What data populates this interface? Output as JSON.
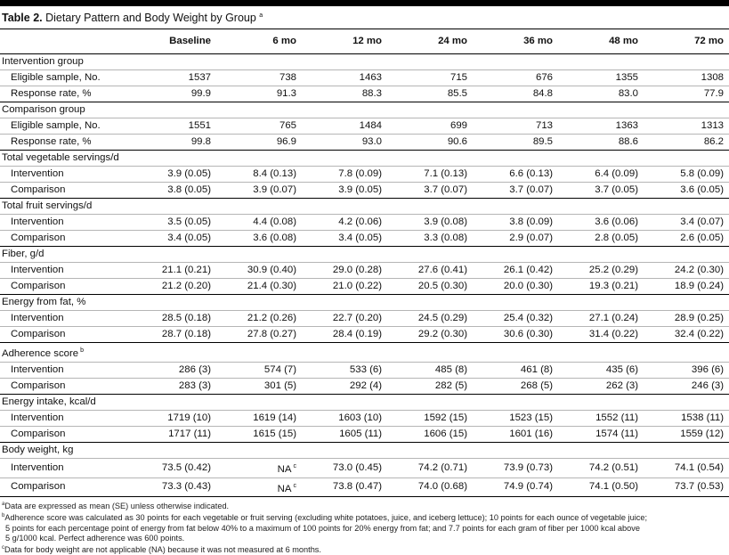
{
  "caption": {
    "label": "Table 2.",
    "title": "Dietary Pattern and Body Weight by Group",
    "mark": "a"
  },
  "header": [
    "",
    "Baseline",
    "6 mo",
    "12 mo",
    "24 mo",
    "36 mo",
    "48 mo",
    "72 mo"
  ],
  "groups": [
    {
      "label": "Intervention group",
      "rows": [
        {
          "label": "Eligible sample, No.",
          "values": [
            "1537",
            "738",
            "1463",
            "715",
            "676",
            "1355",
            "1308"
          ]
        },
        {
          "label": "Response rate, %",
          "values": [
            "99.9",
            "91.3",
            "88.3",
            "85.5",
            "84.8",
            "83.0",
            "77.9"
          ]
        }
      ]
    },
    {
      "label": "Comparison group",
      "rows": [
        {
          "label": "Eligible sample, No.",
          "values": [
            "1551",
            "765",
            "1484",
            "699",
            "713",
            "1363",
            "1313"
          ]
        },
        {
          "label": "Response rate, %",
          "values": [
            "99.8",
            "96.9",
            "93.0",
            "90.6",
            "89.5",
            "88.6",
            "86.2"
          ]
        }
      ]
    },
    {
      "label": "Total vegetable servings/d",
      "rows": [
        {
          "label": "Intervention",
          "values": [
            "3.9 (0.05)",
            "8.4 (0.13)",
            "7.8 (0.09)",
            "7.1 (0.13)",
            "6.6 (0.13)",
            "6.4 (0.09)",
            "5.8 (0.09)"
          ]
        },
        {
          "label": "Comparison",
          "values": [
            "3.8 (0.05)",
            "3.9 (0.07)",
            "3.9 (0.05)",
            "3.7 (0.07)",
            "3.7 (0.07)",
            "3.7 (0.05)",
            "3.6 (0.05)"
          ]
        }
      ]
    },
    {
      "label": "Total fruit servings/d",
      "rows": [
        {
          "label": "Intervention",
          "values": [
            "3.5 (0.05)",
            "4.4 (0.08)",
            "4.2 (0.06)",
            "3.9 (0.08)",
            "3.8 (0.09)",
            "3.6 (0.06)",
            "3.4 (0.07)"
          ]
        },
        {
          "label": "Comparison",
          "values": [
            "3.4 (0.05)",
            "3.6 (0.08)",
            "3.4 (0.05)",
            "3.3 (0.08)",
            "2.9 (0.07)",
            "2.8 (0.05)",
            "2.6 (0.05)"
          ]
        }
      ]
    },
    {
      "label": "Fiber, g/d",
      "rows": [
        {
          "label": "Intervention",
          "values": [
            "21.1 (0.21)",
            "30.9 (0.40)",
            "29.0 (0.28)",
            "27.6 (0.41)",
            "26.1 (0.42)",
            "25.2 (0.29)",
            "24.2 (0.30)"
          ]
        },
        {
          "label": "Comparison",
          "values": [
            "21.2 (0.20)",
            "21.4 (0.30)",
            "21.0 (0.22)",
            "20.5 (0.30)",
            "20.0 (0.30)",
            "19.3 (0.21)",
            "18.9 (0.24)"
          ]
        }
      ]
    },
    {
      "label": "Energy from fat, %",
      "rows": [
        {
          "label": "Intervention",
          "values": [
            "28.5 (0.18)",
            "21.2 (0.26)",
            "22.7 (0.20)",
            "24.5 (0.29)",
            "25.4 (0.32)",
            "27.1 (0.24)",
            "28.9 (0.25)"
          ]
        },
        {
          "label": "Comparison",
          "values": [
            "28.7 (0.18)",
            "27.8 (0.27)",
            "28.4 (0.19)",
            "29.2 (0.30)",
            "30.6 (0.30)",
            "31.4 (0.22)",
            "32.4 (0.22)"
          ]
        }
      ]
    },
    {
      "label": "Adherence score",
      "mark": "b",
      "rows": [
        {
          "label": "Intervention",
          "values": [
            "286 (3)",
            "574 (7)",
            "533 (6)",
            "485 (8)",
            "461 (8)",
            "435 (6)",
            "396 (6)"
          ]
        },
        {
          "label": "Comparison",
          "values": [
            "283 (3)",
            "301 (5)",
            "292 (4)",
            "282 (5)",
            "268 (5)",
            "262 (3)",
            "246 (3)"
          ]
        }
      ]
    },
    {
      "label": "Energy intake, kcal/d",
      "rows": [
        {
          "label": "Intervention",
          "values": [
            "1719 (10)",
            "1619 (14)",
            "1603 (10)",
            "1592 (15)",
            "1523 (15)",
            "1552 (11)",
            "1538 (11)"
          ]
        },
        {
          "label": "Comparison",
          "values": [
            "1717 (11)",
            "1615 (15)",
            "1605 (11)",
            "1606 (15)",
            "1601 (16)",
            "1574 (11)",
            "1559 (12)"
          ]
        }
      ]
    },
    {
      "label": "Body weight, kg",
      "rows": [
        {
          "label": "Intervention",
          "values": [
            "73.5 (0.42)",
            "NA",
            "73.0 (0.45)",
            "74.2 (0.71)",
            "73.9 (0.73)",
            "74.2 (0.51)",
            "74.1 (0.54)"
          ],
          "marks": [
            "",
            "c",
            "",
            "",
            "",
            "",
            ""
          ]
        },
        {
          "label": "Comparison",
          "values": [
            "73.3 (0.43)",
            "NA",
            "73.8 (0.47)",
            "74.0 (0.68)",
            "74.9 (0.74)",
            "74.1 (0.50)",
            "73.7 (0.53)"
          ],
          "marks": [
            "",
            "c",
            "",
            "",
            "",
            "",
            ""
          ]
        }
      ]
    }
  ],
  "footnotes": [
    {
      "mark": "a",
      "lines": [
        "Data are expressed as mean (SE) unless otherwise indicated."
      ]
    },
    {
      "mark": "b",
      "lines": [
        "Adherence score was calculated as 30 points for each vegetable or fruit serving (excluding white potatoes, juice, and iceberg lettuce); 10 points for each ounce of vegetable juice;",
        "5 points for each percentage point of energy from fat below 40% to a maximum of 100 points for 20% energy from fat; and 7.7 points for each gram of fiber per 1000 kcal above",
        "5 g/1000 kcal. Perfect adherence was 600 points."
      ]
    },
    {
      "mark": "c",
      "lines": [
        "Data for body weight are not applicable (NA) because it was not measured at 6 months."
      ]
    }
  ]
}
